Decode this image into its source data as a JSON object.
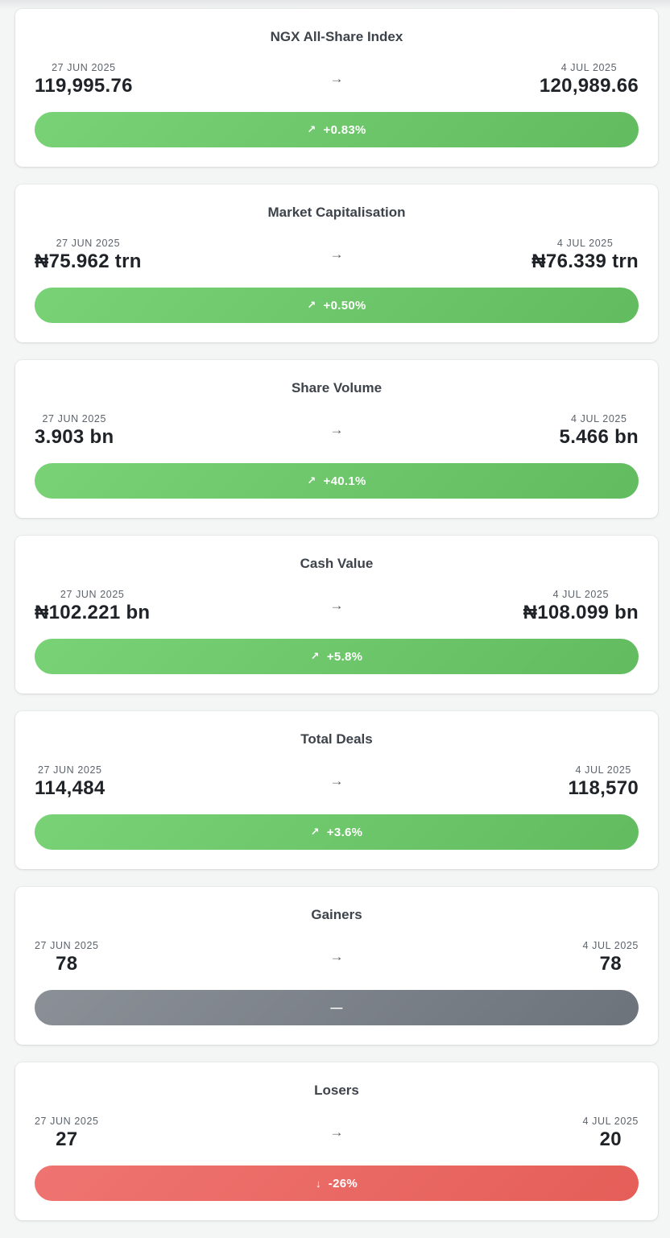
{
  "cards": [
    {
      "title": "NGX All-Share Index",
      "from": {
        "date": "27 JUN 2025",
        "value": "119,995.76"
      },
      "to": {
        "date": "4 JUL 2025",
        "value": "120,989.66"
      },
      "arrow": "→",
      "change": {
        "icon": "↗",
        "text": "+0.83%",
        "status": "up"
      }
    },
    {
      "title": "Market Capitalisation",
      "from": {
        "date": "27 JUN 2025",
        "value": "₦75.962 trn"
      },
      "to": {
        "date": "4 JUL 2025",
        "value": "₦76.339 trn"
      },
      "arrow": "→",
      "change": {
        "icon": "↗",
        "text": "+0.50%",
        "status": "up"
      }
    },
    {
      "title": "Share Volume",
      "from": {
        "date": "27 JUN 2025",
        "value": "3.903 bn"
      },
      "to": {
        "date": "4 JUL 2025",
        "value": "5.466 bn"
      },
      "arrow": "→",
      "change": {
        "icon": "↗",
        "text": "+40.1%",
        "status": "up"
      }
    },
    {
      "title": "Cash Value",
      "from": {
        "date": "27 JUN 2025",
        "value": "₦102.221 bn"
      },
      "to": {
        "date": "4 JUL 2025",
        "value": "₦108.099 bn"
      },
      "arrow": "→",
      "change": {
        "icon": "↗",
        "text": "+5.8%",
        "status": "up"
      }
    },
    {
      "title": "Total Deals",
      "from": {
        "date": "27 JUN 2025",
        "value": "114,484"
      },
      "to": {
        "date": "4 JUL 2025",
        "value": "118,570"
      },
      "arrow": "→",
      "change": {
        "icon": "↗",
        "text": "+3.6%",
        "status": "up"
      }
    },
    {
      "title": "Gainers",
      "from": {
        "date": "27 JUN 2025",
        "value": "78"
      },
      "to": {
        "date": "4 JUL 2025",
        "value": "78"
      },
      "arrow": "→",
      "change": {
        "icon": "",
        "text": "—",
        "status": "flat"
      }
    },
    {
      "title": "Losers",
      "from": {
        "date": "27 JUN 2025",
        "value": "27"
      },
      "to": {
        "date": "4 JUL 2025",
        "value": "20"
      },
      "arrow": "→",
      "change": {
        "icon": "↓",
        "text": "-26%",
        "status": "down"
      }
    }
  ],
  "colors": {
    "up": "#6cc768",
    "flat": "#7b8088",
    "down": "#ea6964",
    "card_bg": "#ffffff",
    "page_bg": "#f4f5f5"
  },
  "icons": {
    "up": "arrow-up-right-icon",
    "flat": "dash-icon",
    "down": "arrow-down-icon",
    "between": "arrow-right-icon"
  }
}
